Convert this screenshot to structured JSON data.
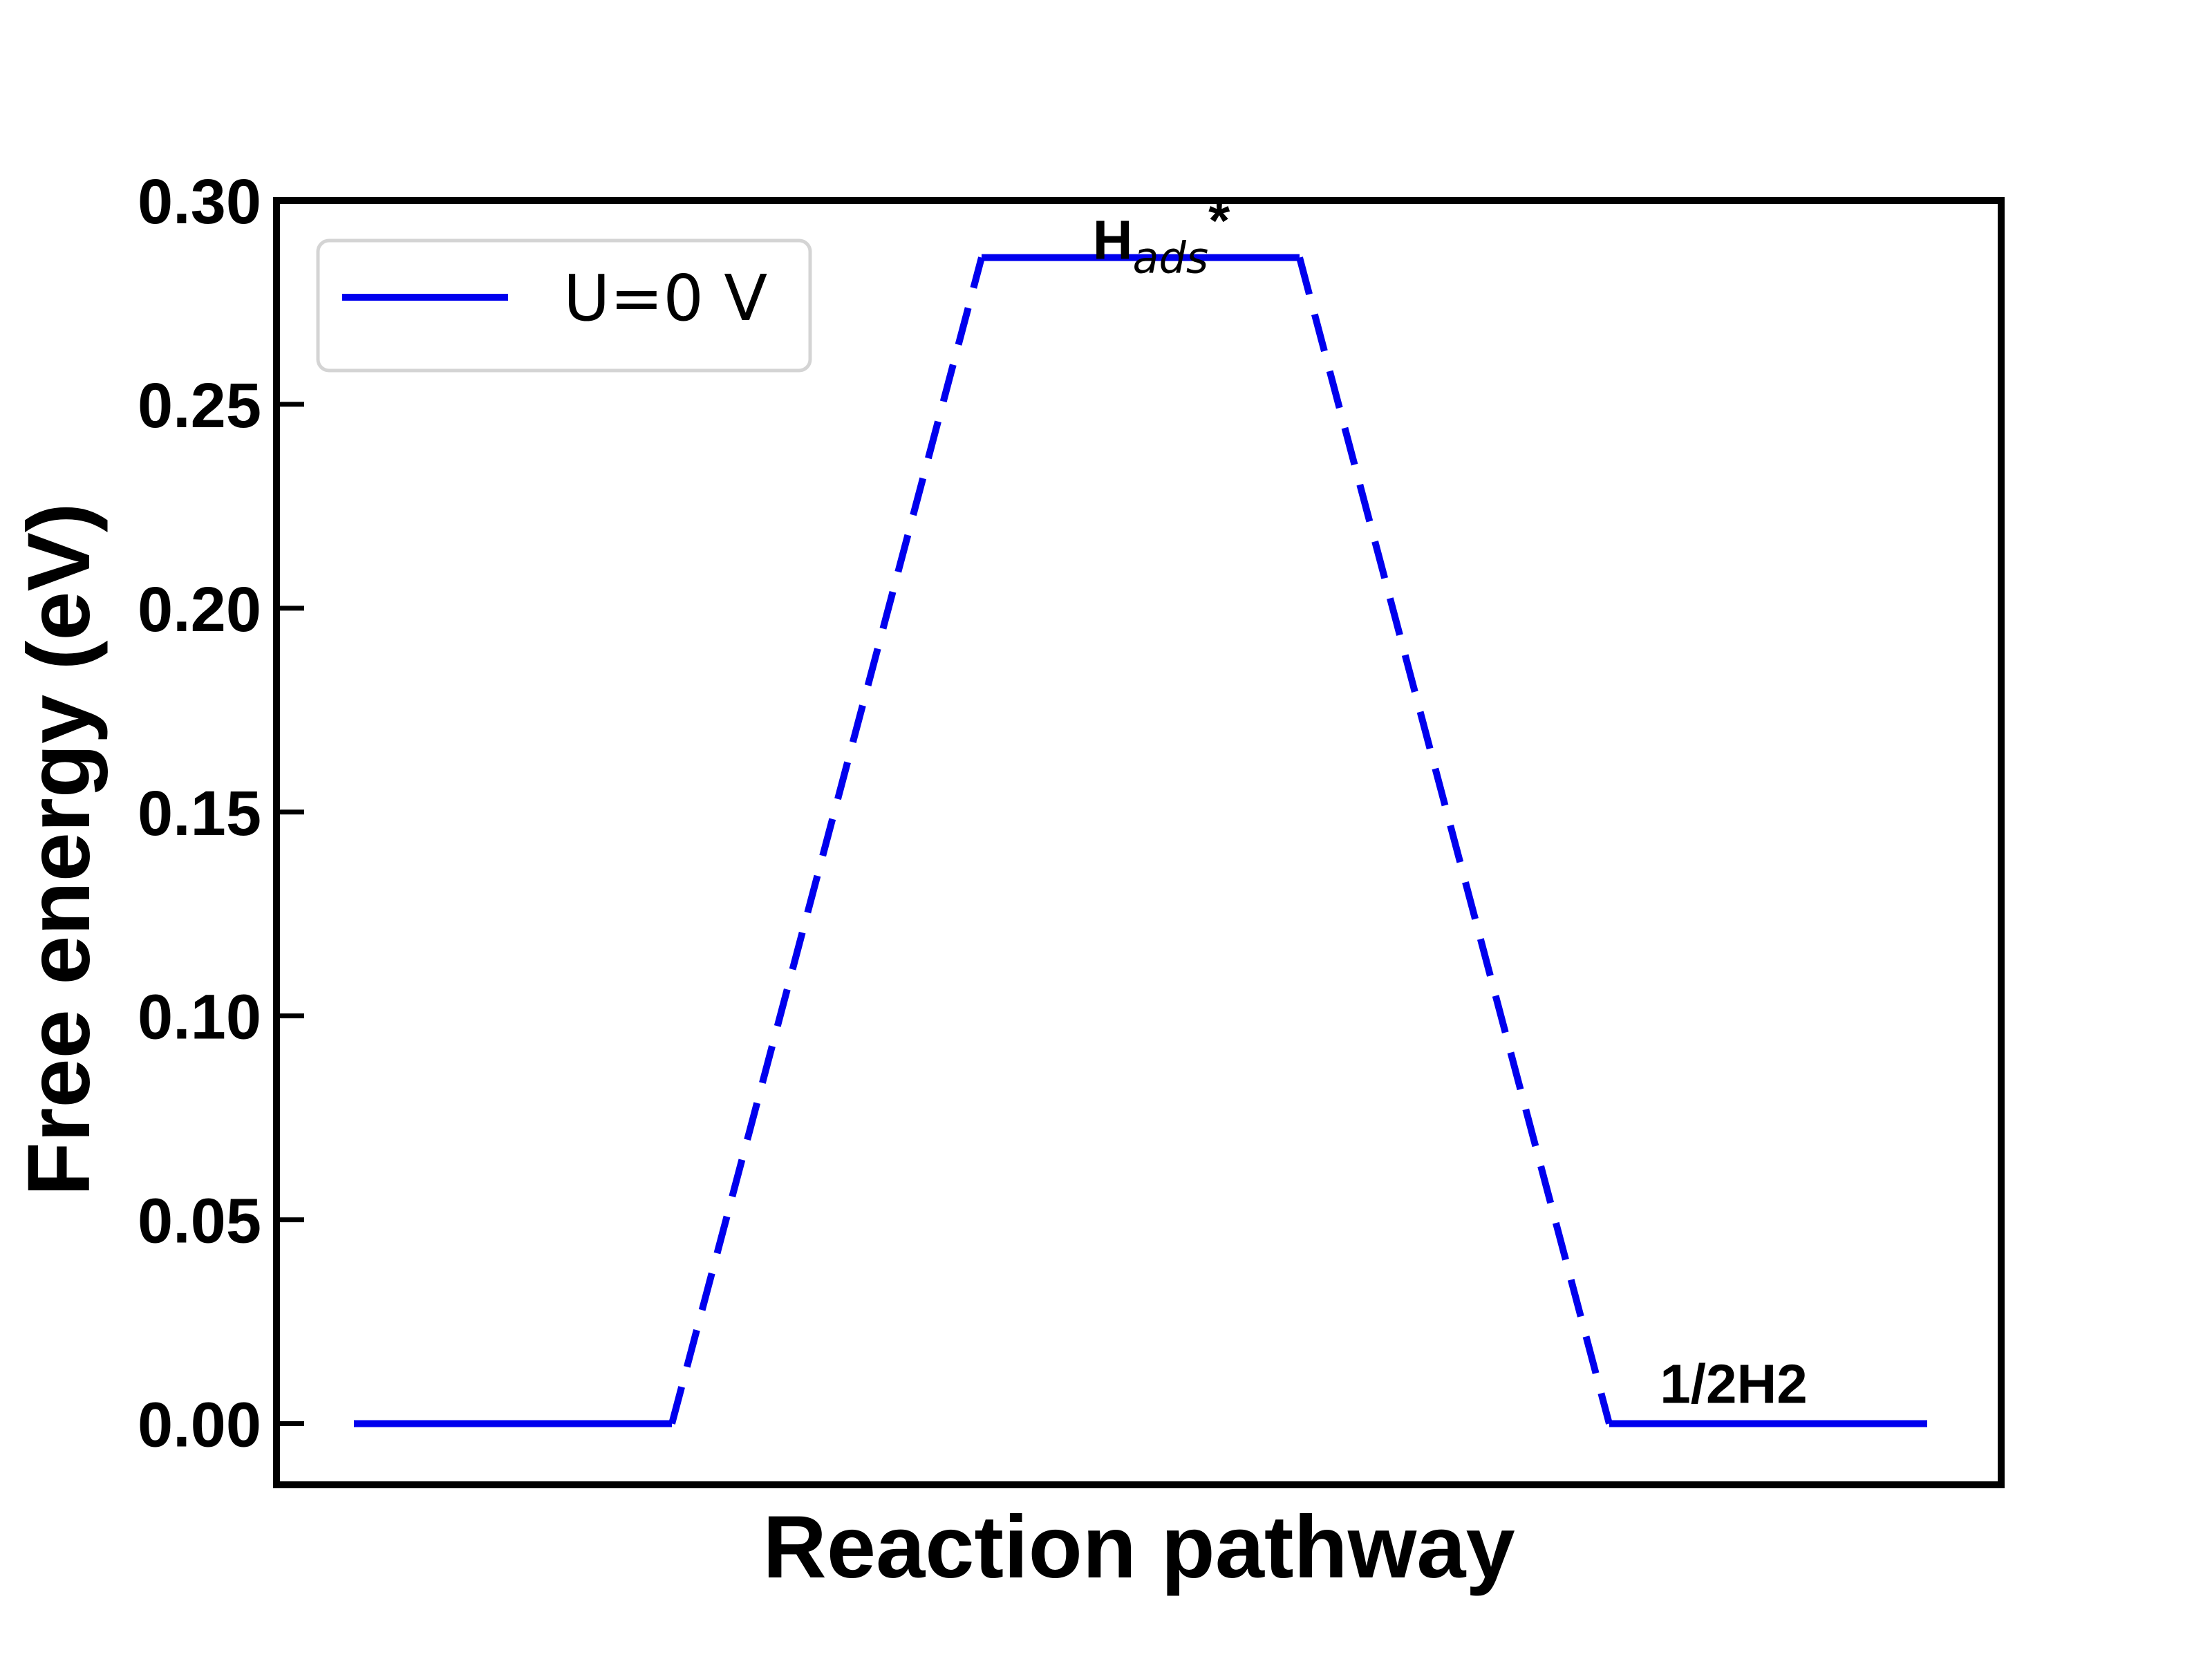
{
  "chart_data": {
    "type": "line",
    "title": "",
    "xlabel": "Reaction pathway",
    "ylabel": "Free energy (eV)",
    "ylim": [
      -0.015,
      0.3
    ],
    "yticks": [
      0.0,
      0.05,
      0.1,
      0.15,
      0.2,
      0.25,
      0.3
    ],
    "ytick_labels": [
      "0.00",
      "0.05",
      "0.10",
      "0.15",
      "0.20",
      "0.25",
      "0.30"
    ],
    "grid": false,
    "legend_position": "top-left",
    "series": [
      {
        "name": "U=0 V",
        "color": "#0000ee",
        "levels": [
          {
            "value": 0.0
          },
          {
            "value": 0.286,
            "label_main": "H",
            "label_sub": "ads",
            "label_sup": "*"
          },
          {
            "value": 0.0,
            "label": "1/2H2"
          }
        ]
      }
    ]
  }
}
